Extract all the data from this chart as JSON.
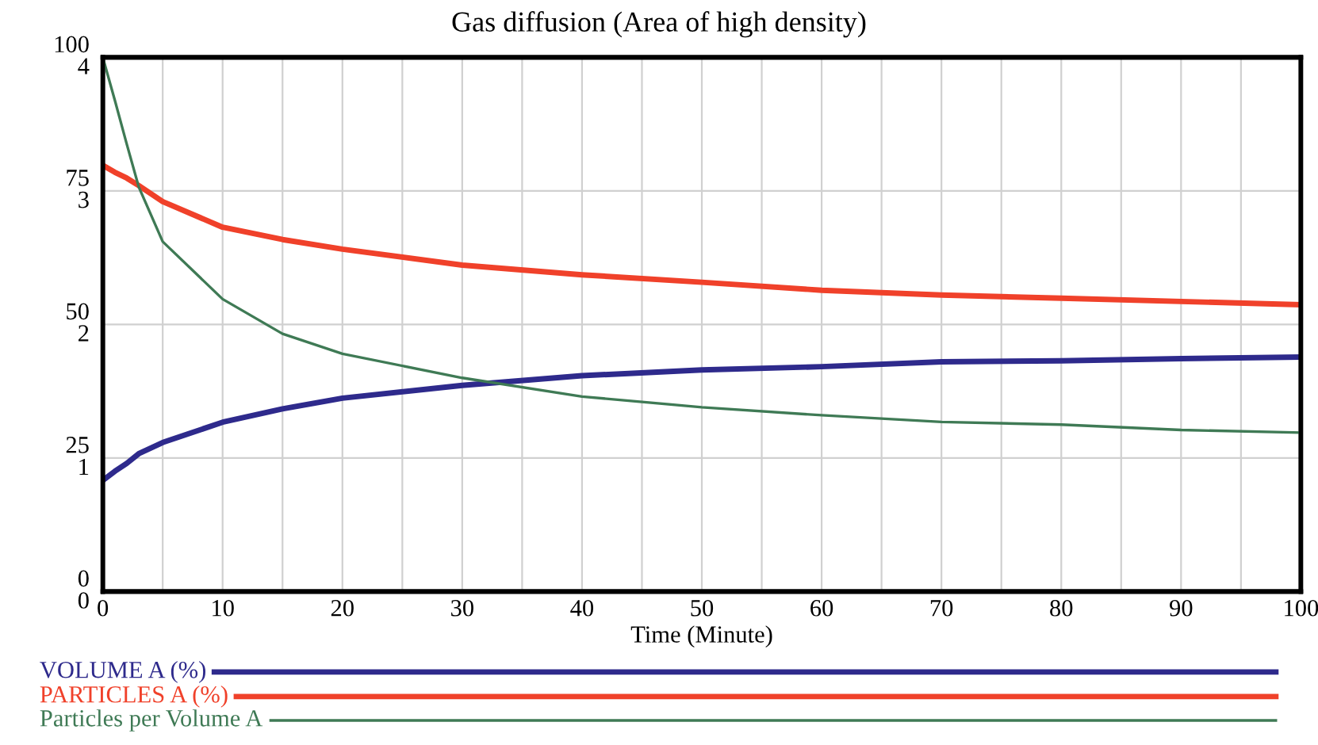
{
  "chart_data": {
    "type": "line",
    "title": "Gas diffusion (Area of high density)",
    "xlabel": "Time (Minute)",
    "x": [
      0,
      1,
      2,
      3,
      5,
      10,
      15,
      20,
      30,
      40,
      50,
      60,
      70,
      80,
      90,
      100
    ],
    "xlim": [
      0,
      100
    ],
    "xticks": [
      0,
      {
        "value": 5,
        "label": null
      },
      10,
      {
        "value": 15,
        "label": null
      },
      20,
      {
        "value": 25,
        "label": null
      },
      30,
      {
        "value": 35,
        "label": null
      },
      40,
      {
        "value": 45,
        "label": null
      },
      50,
      {
        "value": 55,
        "label": null
      },
      60,
      {
        "value": 65,
        "label": null
      },
      70,
      {
        "value": 75,
        "label": null
      },
      80,
      {
        "value": 85,
        "label": null
      },
      90,
      {
        "value": 95,
        "label": null
      },
      100
    ],
    "ylim": [
      0,
      100
    ],
    "yticks": [
      0,
      25,
      50,
      75,
      100
    ],
    "y2lim": [
      0,
      4
    ],
    "y2ticks": [
      0,
      1,
      2,
      3,
      4
    ],
    "grid": true,
    "legend": "bottom",
    "series": [
      {
        "name": "VOLUME A (%)",
        "color": "#2e2a8c",
        "values": [
          20.8,
          22.5,
          24,
          25.8,
          27.9,
          31.7,
          34.2,
          36.2,
          38.6,
          40.4,
          41.5,
          42.1,
          43,
          43.2,
          43.6,
          43.9
        ]
      },
      {
        "name": "PARTICLES A (%)",
        "color": "#f0412a",
        "values": [
          79.8,
          78.5,
          77.4,
          76,
          73,
          68.2,
          65.9,
          64.1,
          61.1,
          59.3,
          57.9,
          56.4,
          55.5,
          54.9,
          54.3,
          53.7
        ]
      },
      {
        "name": "Particles per Volume A",
        "color": "#3f7a55",
        "axis": "y2",
        "values": [
          4.0,
          3.68,
          3.35,
          3.03,
          2.62,
          2.19,
          1.93,
          1.78,
          1.6,
          1.46,
          1.38,
          1.32,
          1.27,
          1.25,
          1.21,
          1.19
        ]
      }
    ]
  }
}
